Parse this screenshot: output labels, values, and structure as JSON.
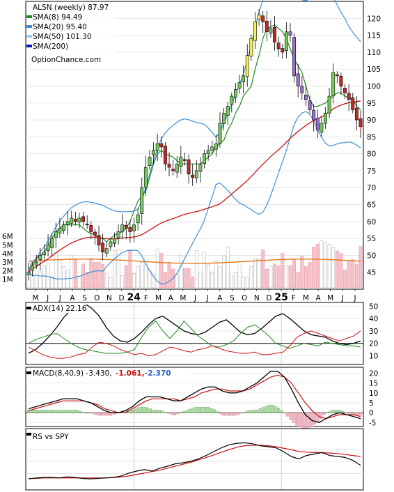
{
  "chart_data": [
    {
      "type": "candlestick",
      "panel": "price",
      "title": "ALSN (weekly) 87.97",
      "x_labels": [
        "M",
        "J",
        "J",
        "A",
        "S",
        "O",
        "N",
        "D",
        "24",
        "F",
        "M",
        "A",
        "M",
        "J",
        "J",
        "A",
        "S",
        "O",
        "N",
        "D",
        "25",
        "F",
        "M",
        "A",
        "M",
        "J",
        "J"
      ],
      "ylim": [
        40,
        125
      ],
      "y_ticks": [
        45,
        50,
        55,
        60,
        65,
        70,
        75,
        80,
        85,
        90,
        95,
        100,
        105,
        110,
        115,
        120
      ],
      "legend": [
        {
          "label": "SMA(8) 94.49",
          "color": "#1e8a1e"
        },
        {
          "label": "SMA(20) 95.40",
          "color": "#3d8fd6"
        },
        {
          "label": "SMA(50) 101.30",
          "color": "#9cc9ef"
        },
        {
          "label": "SMA(200)",
          "color": "#1010cc"
        }
      ],
      "watermark": "OptionChance.com",
      "last_price": 87.97,
      "close": [
        45,
        47,
        48,
        50,
        51,
        53,
        55,
        57,
        58,
        59,
        60,
        61,
        60,
        61,
        60,
        59,
        57,
        56,
        53,
        51,
        52,
        54,
        55,
        57,
        59,
        58,
        57,
        59,
        62,
        70,
        76,
        79,
        81,
        83,
        82,
        77,
        76,
        75,
        77,
        79,
        78,
        74,
        73,
        75,
        77,
        80,
        81,
        82,
        83,
        89,
        92,
        94,
        97,
        99,
        101,
        103,
        109,
        114,
        119,
        121,
        119,
        116,
        117,
        113,
        111,
        110,
        116,
        115,
        103,
        100,
        98,
        96,
        93,
        90,
        87,
        89,
        92,
        97,
        104,
        103,
        100,
        98,
        96,
        93,
        90,
        88
      ],
      "sma8": [
        46,
        47,
        49,
        51,
        53,
        55,
        57,
        58,
        59,
        59,
        59,
        59,
        58,
        57,
        56,
        55,
        55,
        54,
        55,
        56,
        57,
        58,
        60,
        63,
        66,
        69,
        73,
        77,
        80,
        81,
        80,
        79,
        78,
        77,
        77,
        77,
        77,
        77,
        78,
        79,
        80,
        82,
        84,
        87,
        89,
        92,
        94,
        97,
        100,
        105,
        109,
        114,
        117,
        118,
        117,
        116,
        114,
        111,
        108,
        104,
        100,
        96,
        94,
        94,
        95,
        96,
        97,
        98,
        98,
        97,
        96,
        94,
        93
      ]
    },
    {
      "type": "bar",
      "panel": "volume",
      "y_tick_labels": [
        "1M",
        "2M",
        "3M",
        "4M",
        "5M",
        "6M"
      ],
      "ylim": [
        0,
        6.5
      ],
      "avg_volume": 3.1
    },
    {
      "type": "line",
      "panel": "adx",
      "label": "ADX(14) 22.16",
      "ylim": [
        3,
        53
      ],
      "y_ticks": [
        10,
        20,
        30,
        40,
        50
      ],
      "series": [
        {
          "name": "ADX",
          "color": "#000000",
          "values": [
            12,
            15,
            20,
            26,
            33,
            41,
            47,
            52,
            52,
            48,
            42,
            33,
            26,
            22,
            21,
            24,
            29,
            35,
            40,
            42,
            38,
            34,
            30,
            28,
            27,
            29,
            33,
            37,
            39,
            34,
            29,
            27,
            28,
            32,
            37,
            42,
            44,
            40,
            35,
            30,
            27,
            26,
            25,
            22,
            20,
            19,
            20,
            22
          ]
        },
        {
          "name": "+DI",
          "color": "#1e8a1e",
          "values": [
            20,
            23,
            25,
            27,
            28,
            24,
            20,
            17,
            15,
            14,
            13,
            12,
            12,
            12,
            13,
            15,
            25,
            33,
            38,
            30,
            24,
            30,
            38,
            32,
            26,
            22,
            18,
            17,
            19,
            22,
            28,
            33,
            35,
            31,
            26,
            20,
            18,
            16,
            18,
            20,
            19,
            18,
            21,
            20,
            19,
            18,
            18,
            17
          ]
        },
        {
          "name": "-DI",
          "color": "#d01010",
          "values": [
            17,
            14,
            11,
            9,
            8,
            8,
            9,
            11,
            12,
            17,
            21,
            20,
            18,
            15,
            13,
            11,
            12,
            10,
            11,
            14,
            17,
            16,
            14,
            13,
            15,
            16,
            18,
            16,
            14,
            13,
            12,
            12,
            13,
            11,
            11,
            12,
            13,
            18,
            25,
            28,
            30,
            28,
            26,
            24,
            22,
            24,
            26,
            30
          ]
        }
      ]
    },
    {
      "type": "line",
      "panel": "macd",
      "label": "MACD(8,40,9) -3.430,",
      "macd_value": "-1.061,",
      "signal_value": "-2.370",
      "ylim": [
        -7,
        23
      ],
      "y_ticks": [
        -5,
        0,
        5,
        10,
        15,
        20
      ],
      "series": [
        {
          "name": "MACD",
          "color": "#000000",
          "values": [
            2,
            3,
            4,
            5,
            6,
            7,
            7,
            7,
            6,
            5,
            3,
            1,
            0,
            0,
            1,
            3,
            6,
            8,
            8,
            8,
            7,
            6,
            6,
            8,
            10,
            12,
            13,
            13,
            11,
            10,
            10,
            11,
            13,
            15,
            18,
            21,
            21,
            18,
            12,
            5,
            -1,
            -4,
            -5,
            -3,
            -1,
            0,
            -1,
            -2,
            -3
          ]
        },
        {
          "name": "Signal",
          "color": "#d01010",
          "values": [
            1,
            2,
            3,
            4,
            5,
            6,
            6,
            6,
            6,
            5,
            4,
            2,
            1,
            0,
            0,
            2,
            4,
            6,
            7,
            7,
            7,
            7,
            6,
            7,
            8,
            10,
            11,
            12,
            12,
            11,
            11,
            11,
            12,
            14,
            16,
            18,
            19,
            18,
            15,
            10,
            5,
            1,
            -2,
            -3,
            -2,
            -1,
            -1,
            -1,
            -2
          ]
        }
      ]
    },
    {
      "type": "line",
      "panel": "relative_strength",
      "label": "RS vs SPY",
      "series": [
        {
          "name": "RS",
          "color": "#000000",
          "values": [
            0.14,
            0.16,
            0.17,
            0.17,
            0.16,
            0.18,
            0.17,
            0.15,
            0.14,
            0.15,
            0.16,
            0.17,
            0.2,
            0.26,
            0.3,
            0.33,
            0.3,
            0.36,
            0.4,
            0.45,
            0.47,
            0.5,
            0.55,
            0.62,
            0.7,
            0.78,
            0.84,
            0.87,
            0.88,
            0.86,
            0.82,
            0.8,
            0.78,
            0.7,
            0.6,
            0.55,
            0.62,
            0.65,
            0.68,
            0.62,
            0.6,
            0.58,
            0.52,
            0.42
          ]
        },
        {
          "name": "RS average",
          "color": "#d01010",
          "values": [
            0.15,
            0.15,
            0.16,
            0.16,
            0.16,
            0.16,
            0.16,
            0.16,
            0.16,
            0.16,
            0.16,
            0.17,
            0.18,
            0.2,
            0.23,
            0.26,
            0.29,
            0.32,
            0.36,
            0.4,
            0.44,
            0.48,
            0.53,
            0.58,
            0.63,
            0.69,
            0.74,
            0.79,
            0.82,
            0.83,
            0.83,
            0.82,
            0.8,
            0.77,
            0.74,
            0.7,
            0.69,
            0.68,
            0.68,
            0.67,
            0.66,
            0.64,
            0.62,
            0.6
          ]
        }
      ]
    }
  ]
}
